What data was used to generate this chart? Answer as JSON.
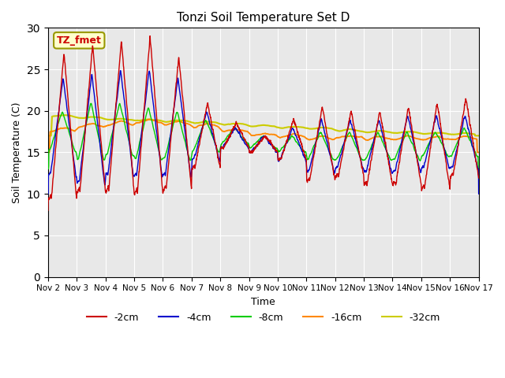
{
  "title": "Tonzi Soil Temperature Set D",
  "xlabel": "Time",
  "ylabel": "Soil Temperature (C)",
  "annotation_text": "TZ_fmet",
  "annotation_box_color": "#ffffcc",
  "annotation_text_color": "#cc0000",
  "annotation_border_color": "#999900",
  "ylim": [
    0,
    30
  ],
  "yticks": [
    0,
    5,
    10,
    15,
    20,
    25,
    30
  ],
  "plot_bg_color": "#e8e8e8",
  "fig_bg_color": "#ffffff",
  "grid_color": "#ffffff",
  "line_colors": {
    "-2cm": "#cc0000",
    "-4cm": "#0000cc",
    "-8cm": "#00cc00",
    "-16cm": "#ff8800",
    "-32cm": "#cccc00"
  },
  "x_tick_labels": [
    "Nov 2",
    "Nov 3",
    "Nov 4",
    "Nov 5",
    "Nov 6",
    "Nov 7",
    "Nov 8",
    "Nov 9",
    "Nov 10",
    "Nov 11",
    "Nov 12",
    "Nov 13",
    "Nov 14",
    "Nov 15",
    "Nov 16",
    "Nov 17"
  ],
  "num_days": 15,
  "pts_per_day": 144
}
